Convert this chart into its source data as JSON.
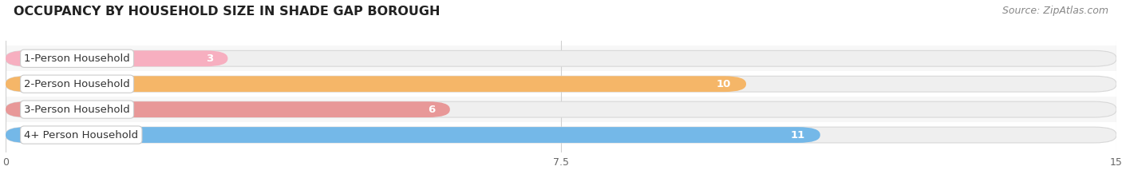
{
  "title": "OCCUPANCY BY HOUSEHOLD SIZE IN SHADE GAP BOROUGH",
  "source": "Source: ZipAtlas.com",
  "categories": [
    "1-Person Household",
    "2-Person Household",
    "3-Person Household",
    "4+ Person Household"
  ],
  "values": [
    3,
    10,
    6,
    11
  ],
  "bar_colors": [
    "#f7afc0",
    "#f5b668",
    "#e89898",
    "#74b8e8"
  ],
  "xlim": [
    0,
    15
  ],
  "xticks": [
    0,
    7.5,
    15
  ],
  "bg_color": "#ffffff",
  "bar_bg_color": "#efefef",
  "bar_bg_edge_color": "#d8d8d8",
  "grid_color": "#d0d0d0",
  "title_fontsize": 11.5,
  "source_fontsize": 9,
  "bar_label_fontsize": 9.5,
  "value_fontsize": 9.5,
  "tick_fontsize": 9
}
